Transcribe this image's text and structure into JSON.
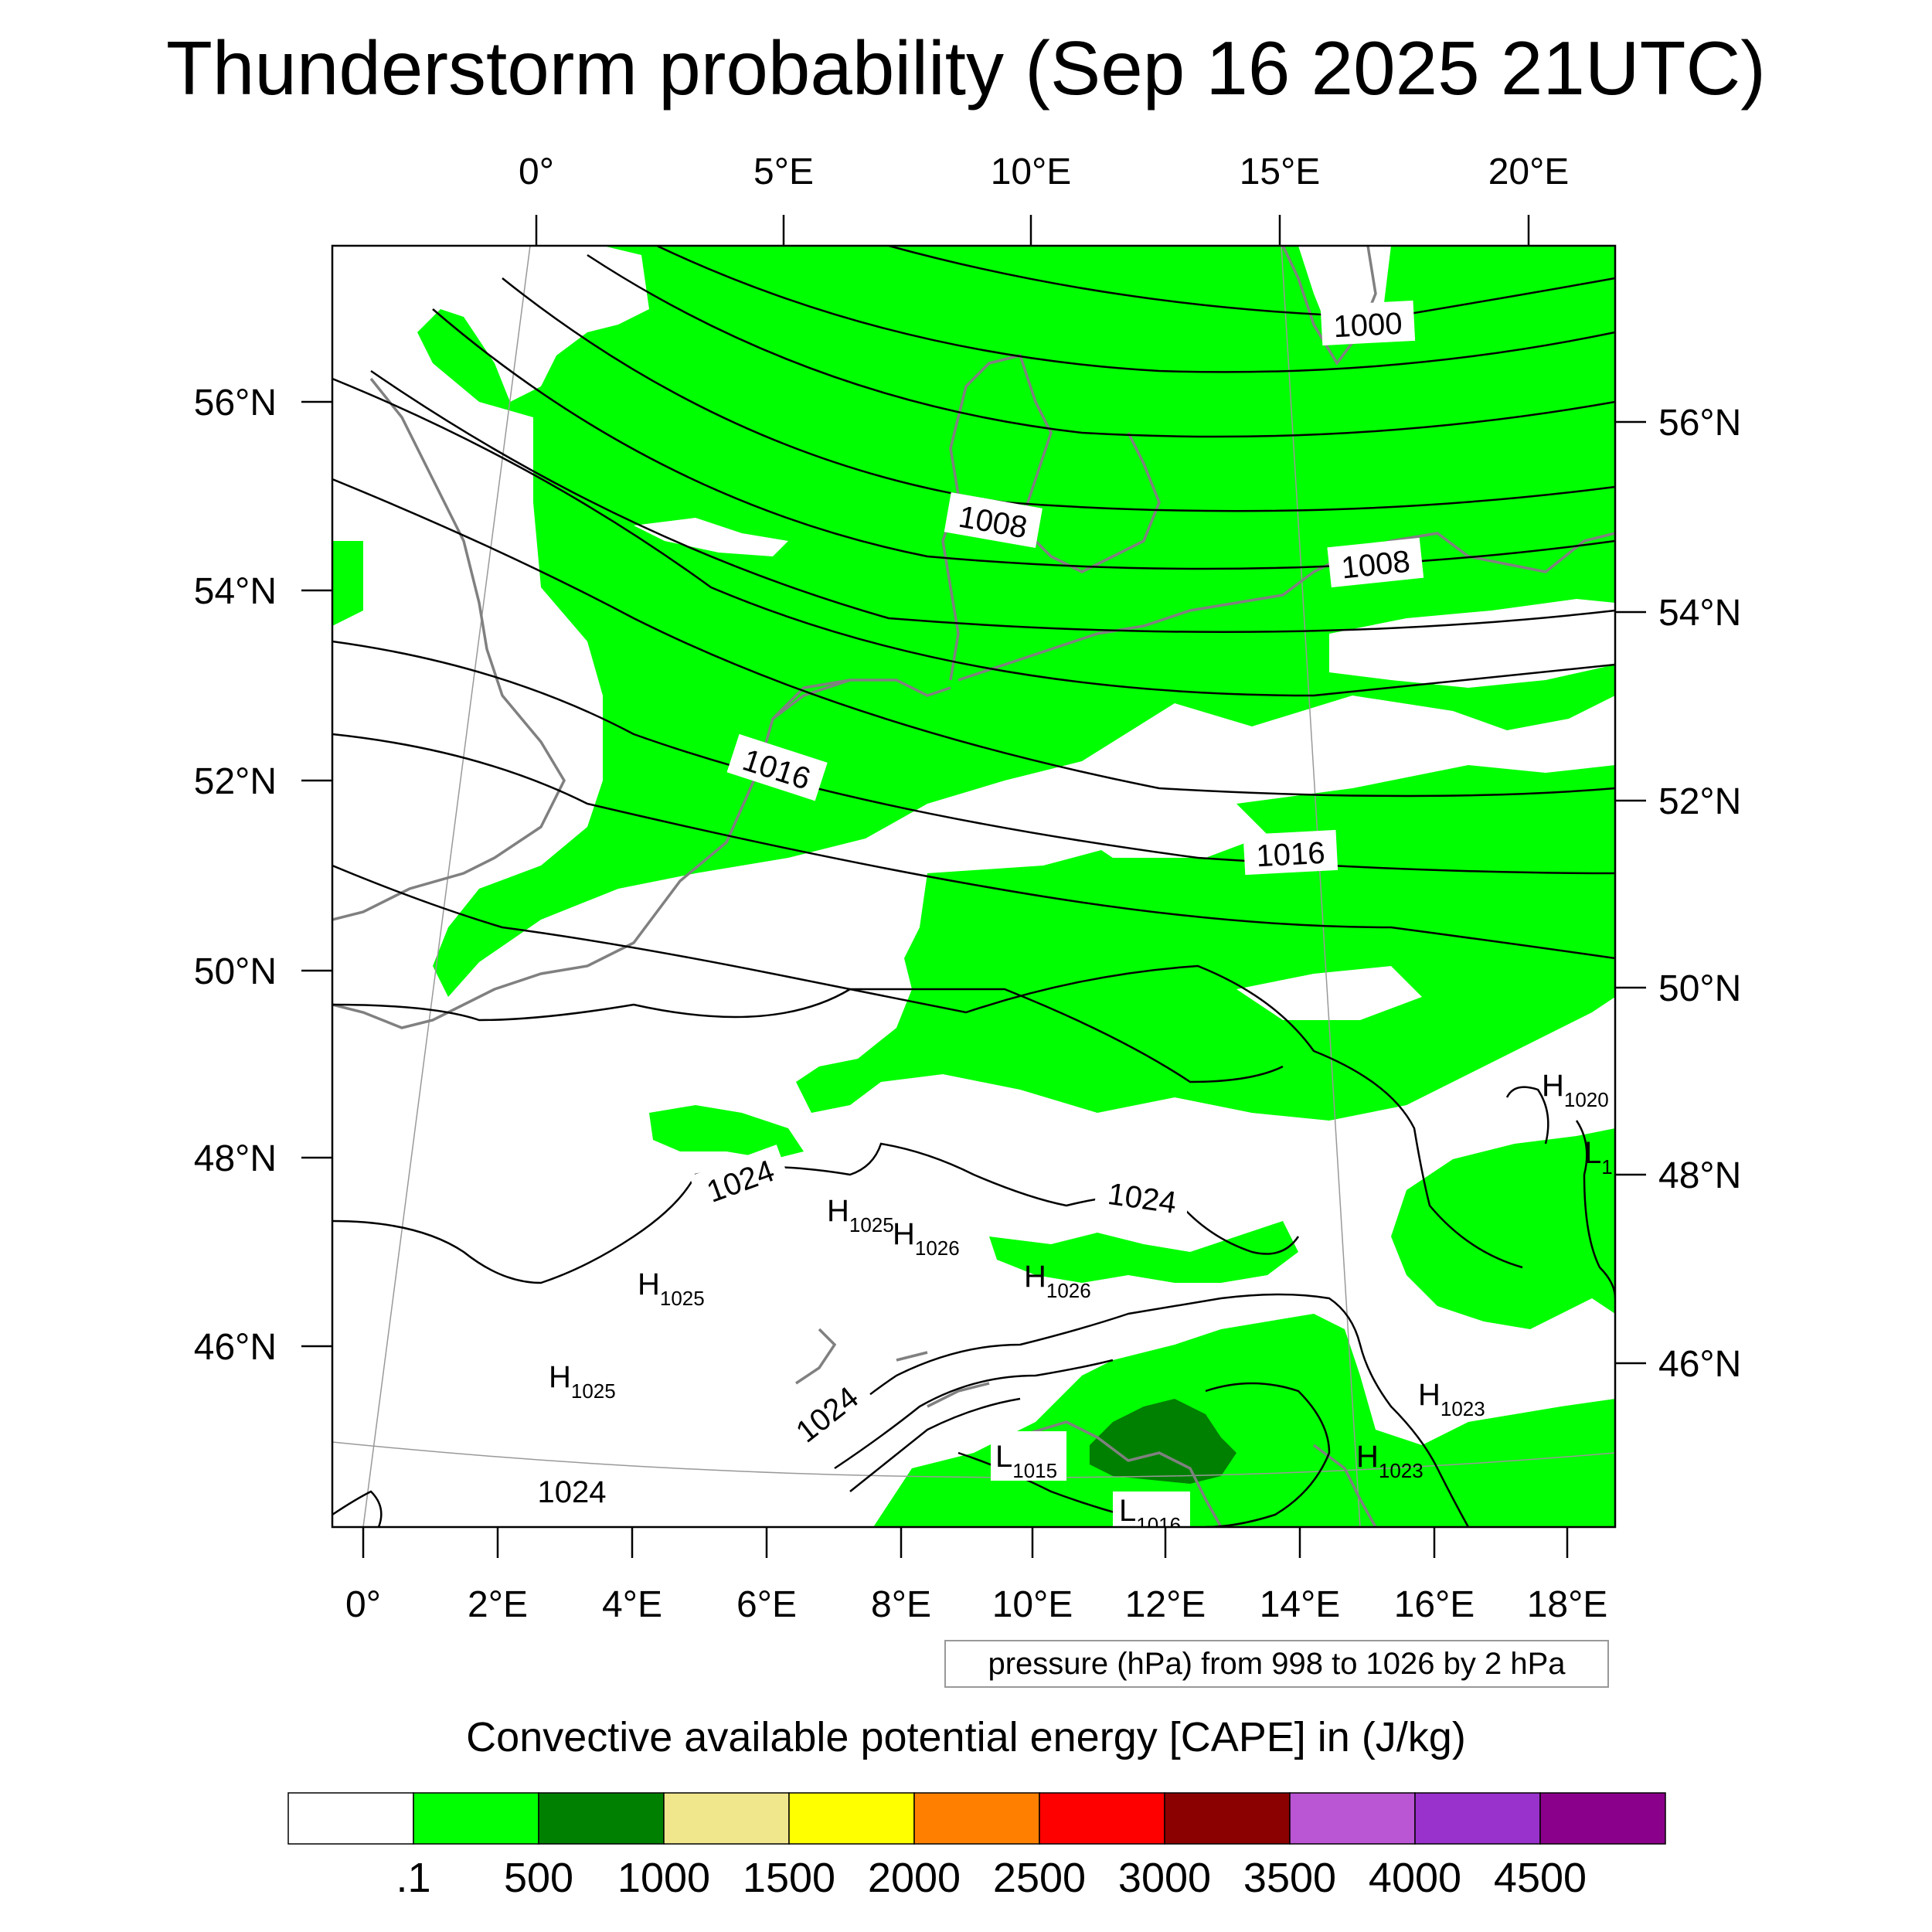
{
  "title": "Thunderstorm probability (Sep 16 2025 21UTC)",
  "map": {
    "top_lon_ticks": [
      "0°",
      "5°E",
      "10°E",
      "15°E",
      "20°E"
    ],
    "bottom_lon_ticks": [
      "0°",
      "2°E",
      "4°E",
      "6°E",
      "8°E",
      "10°E",
      "12°E",
      "14°E",
      "16°E",
      "18°E"
    ],
    "left_lat_ticks": [
      "56°N",
      "54°N",
      "52°N",
      "50°N",
      "48°N",
      "46°N"
    ],
    "right_lat_ticks": [
      "56°N",
      "54°N",
      "52°N",
      "50°N",
      "48°N",
      "46°N"
    ],
    "contour_labels": [
      {
        "text": "1000"
      },
      {
        "text": "1008"
      },
      {
        "text": "1008"
      },
      {
        "text": "1016"
      },
      {
        "text": "1016"
      },
      {
        "text": "1024"
      },
      {
        "text": "1024"
      },
      {
        "text": "1024"
      },
      {
        "text": "1024"
      }
    ],
    "pressure_centers": [
      {
        "type": "H",
        "value": "1025"
      },
      {
        "type": "H",
        "value": "1026"
      },
      {
        "type": "H",
        "value": "1025"
      },
      {
        "type": "H",
        "value": "1026"
      },
      {
        "type": "H",
        "value": "1025"
      },
      {
        "type": "H",
        "value": "1023"
      },
      {
        "type": "H",
        "value": "1023"
      },
      {
        "type": "H",
        "value": "1020"
      },
      {
        "type": "L",
        "value": "1015"
      },
      {
        "type": "L",
        "value": "1016"
      },
      {
        "type": "L",
        "value": "1"
      }
    ],
    "colors": {
      "cape_low": "#00ff00",
      "cape_mid": "#008000",
      "contour": "#000000",
      "coastline": "#808080"
    }
  },
  "pressure_legend": "pressure (hPa) from 998 to 1026 by 2 hPa",
  "colorbar": {
    "title": "Convective available potential energy [CAPE] in (J/kg)",
    "colors": [
      "#ffffff",
      "#00ff00",
      "#008000",
      "#f0e68c",
      "#ffff00",
      "#ff8000",
      "#ff0000",
      "#8b0000",
      "#ba55d3",
      "#9932cc",
      "#8b008b"
    ],
    "labels": [
      ".1",
      "500",
      "1000",
      "1500",
      "2000",
      "2500",
      "3000",
      "3500",
      "4000",
      "4500"
    ]
  }
}
